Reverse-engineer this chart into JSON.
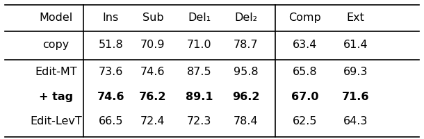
{
  "headers": [
    "Model",
    "Ins",
    "Sub",
    "Del₁",
    "Del₂",
    "Comp",
    "Ext"
  ],
  "rows": [
    {
      "model": "copy",
      "values": [
        "51.8",
        "70.9",
        "71.0",
        "78.7",
        "63.4",
        "61.4"
      ],
      "bold": false
    },
    {
      "model": "Edit-MT",
      "values": [
        "73.6",
        "74.6",
        "87.5",
        "95.8",
        "65.8",
        "69.3"
      ],
      "bold": false
    },
    {
      "model": "+ tag",
      "values": [
        "74.6",
        "76.2",
        "89.1",
        "96.2",
        "67.0",
        "71.6"
      ],
      "bold": true
    },
    {
      "model": "Edit-LevT",
      "values": [
        "66.5",
        "72.4",
        "72.3",
        "78.4",
        "62.5",
        "64.3"
      ],
      "bold": false
    }
  ],
  "background_color": "#ffffff",
  "font_size": 11.5,
  "header_font_size": 11.5
}
